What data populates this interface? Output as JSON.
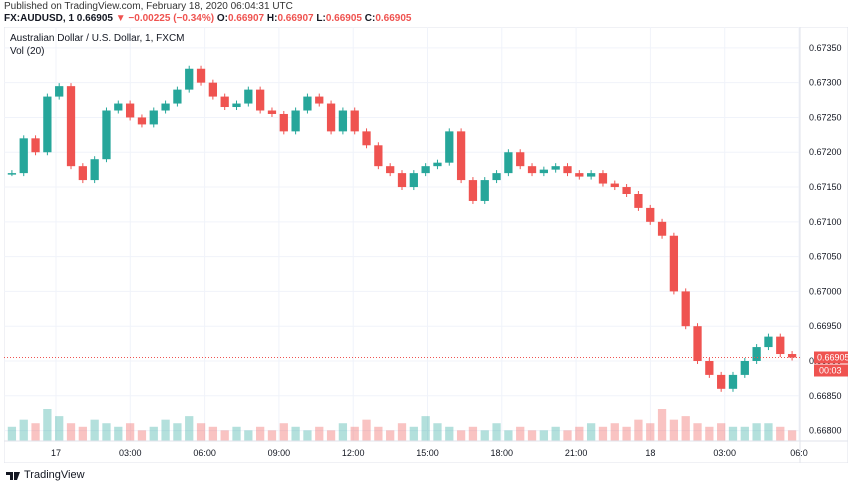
{
  "published": "Published on TradingView.com, February 18, 2020 06:04:31 UTC",
  "quote": {
    "symbol": "FX:AUDUSD, 1",
    "last": "0.66905",
    "arrow": "▼",
    "change": "−0.00225 (−0.34%)",
    "open_label": "O:",
    "open": "0.66907",
    "high_label": "H:",
    "high": "0.66907",
    "low_label": "L:",
    "low": "0.66905",
    "close_label": "C:",
    "close": "0.66905"
  },
  "chart_data": {
    "type": "line",
    "title": "Australian Dollar / U.S. Dollar, 1, FXCM",
    "indicator": "Vol (20)",
    "x_ticks": [
      "17",
      "03:00",
      "06:00",
      "09:00",
      "12:00",
      "15:00",
      "18:00",
      "21:00",
      "18",
      "03:00",
      "06:0"
    ],
    "y_ticks": [
      "0.67350",
      "0.67300",
      "0.67250",
      "0.67200",
      "0.67150",
      "0.67100",
      "0.67050",
      "0.67000",
      "0.66950",
      "0.66900",
      "0.66850",
      "0.66800"
    ],
    "ylim": [
      0.66785,
      0.6738
    ],
    "current_price": "0.66905",
    "countdown": "00:03",
    "series": [
      {
        "values": [
          0.6717,
          0.6722,
          0.672,
          0.6728,
          0.67295,
          0.6718,
          0.6716,
          0.6719,
          0.6726,
          0.6727,
          0.6725,
          0.6724,
          0.6726,
          0.6727,
          0.6729,
          0.6732,
          0.673,
          0.6728,
          0.67265,
          0.6727,
          0.6729,
          0.6726,
          0.67255,
          0.6723,
          0.6726,
          0.6728,
          0.6727,
          0.6723,
          0.6726,
          0.6723,
          0.6721,
          0.6718,
          0.6717,
          0.6715,
          0.6717,
          0.6718,
          0.67185,
          0.6723,
          0.6716,
          0.6713,
          0.6716,
          0.6717,
          0.672,
          0.6718,
          0.6717,
          0.67175,
          0.6718,
          0.6717,
          0.67165,
          0.6717,
          0.67155,
          0.6715,
          0.6714,
          0.6712,
          0.671,
          0.6708,
          0.67,
          0.6695,
          0.669,
          0.6688,
          0.6686,
          0.6688,
          0.669,
          0.6692,
          0.66935,
          0.6691,
          0.66905
        ]
      }
    ],
    "volume": [
      4,
      6,
      5,
      9,
      7,
      5,
      4,
      6,
      5,
      4,
      5,
      3,
      4,
      6,
      5,
      7,
      5,
      4,
      3,
      4,
      3,
      4,
      3,
      5,
      4,
      3,
      4,
      3,
      5,
      4,
      6,
      4,
      3,
      5,
      4,
      7,
      5,
      4,
      3,
      4,
      3,
      5,
      3,
      4,
      3,
      3,
      4,
      3,
      4,
      5,
      4,
      5,
      4,
      6,
      5,
      9,
      6,
      7,
      5,
      4,
      5,
      4,
      4,
      5,
      5,
      4,
      3
    ]
  },
  "brand": "TradingView",
  "colors": {
    "up": "#26a69a",
    "down": "#ef5350",
    "grid": "#f0f3fa",
    "axis": "#e0e3eb",
    "text": "#131722",
    "price_line": "#ef5350"
  }
}
